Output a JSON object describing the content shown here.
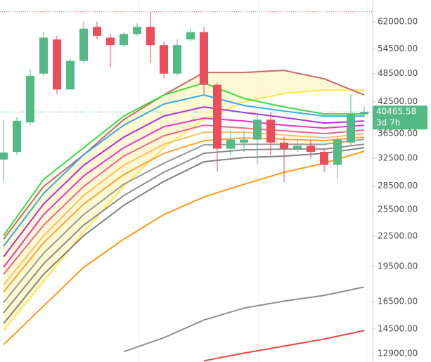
{
  "chart_data": {
    "type": "candlestick",
    "y_scale": "log",
    "ylim": [
      12400,
      68700
    ],
    "yticks": [
      {
        "value": 62000,
        "label": "62000.00"
      },
      {
        "value": 54500,
        "label": "54500.00"
      },
      {
        "value": 48500,
        "label": "48500.00"
      },
      {
        "value": 42500,
        "label": "42500.00"
      },
      {
        "value": 36500,
        "label": "36500.00"
      },
      {
        "value": 32500,
        "label": "32500.00"
      },
      {
        "value": 28500,
        "label": "28500.00"
      },
      {
        "value": 25500,
        "label": "25500.00"
      },
      {
        "value": 22500,
        "label": "22500.00"
      },
      {
        "value": 19500,
        "label": "19500.00"
      },
      {
        "value": 16500,
        "label": "16500.00"
      },
      {
        "value": 14500,
        "label": "14500.00"
      },
      {
        "value": 12900,
        "label": "12900.00"
      }
    ],
    "up_color": "#53b987",
    "down_color": "#eb4d5c",
    "categories": [
      null,
      null,
      null,
      null,
      null,
      null,
      null,
      null,
      null,
      null,
      null,
      null,
      null,
      null,
      null,
      null,
      null,
      null,
      null,
      null,
      null,
      null,
      null,
      null,
      null,
      null,
      null,
      null
    ],
    "open": [
      32300,
      33500,
      38500,
      48500,
      57000,
      45000,
      51500,
      60500,
      57500,
      55500,
      58500,
      60500,
      55500,
      48500,
      57000,
      59000,
      46000,
      34000,
      35000,
      35500,
      39000,
      35000,
      34000,
      34500,
      33500,
      31500,
      35000,
      40000
    ],
    "high": [
      39000,
      39500,
      49500,
      59000,
      58000,
      52000,
      62000,
      62000,
      58500,
      59000,
      61500,
      65000,
      56500,
      57000,
      60000,
      60500,
      46500,
      37000,
      37000,
      40000,
      40500,
      36000,
      35500,
      35500,
      34000,
      36000,
      44000,
      41500
    ],
    "low": [
      29000,
      33000,
      38000,
      48000,
      44000,
      45000,
      51000,
      57000,
      50000,
      55000,
      58000,
      51000,
      47500,
      48000,
      56500,
      44000,
      30500,
      33000,
      33500,
      31500,
      33000,
      29000,
      33500,
      32500,
      30500,
      29500,
      34500,
      39500
    ],
    "close": [
      33400,
      38800,
      48000,
      57500,
      45000,
      51500,
      60000,
      58000,
      55500,
      58500,
      60500,
      55500,
      48500,
      55500,
      59000,
      46000,
      34000,
      35500,
      35500,
      39000,
      35000,
      34000,
      34500,
      33500,
      31500,
      35500,
      40000,
      40465.58
    ],
    "current_price": 40465.58,
    "countdown": "3d 7h",
    "line_x": [
      0,
      3,
      6,
      9,
      12,
      15,
      18,
      21,
      24,
      27
    ],
    "lines": [
      {
        "color": "#f0c0b0",
        "values": [
          22170,
          28450,
          33040,
          39030,
          43840,
          48770,
          48770,
          49250,
          47330,
          43840
        ]
      },
      {
        "color": "#ffe84d",
        "values": [
          14390,
          18160,
          22920,
          28450,
          34160,
          39030,
          42410,
          44130,
          44880,
          44880
        ]
      },
      {
        "color": "#c96a6a",
        "values": [
          22170,
          28450,
          33040,
          39030,
          43840,
          48770,
          48770,
          49250,
          47330,
          43840
        ]
      },
      {
        "color": "#3ddc3d",
        "values": [
          22540,
          29410,
          34160,
          39680,
          43840,
          46390,
          43120,
          41430,
          40080,
          40080
        ]
      },
      {
        "color": "#33aaee",
        "values": [
          21440,
          27520,
          33040,
          38000,
          41990,
          43840,
          41710,
          40620,
          39680,
          39680
        ]
      },
      {
        "color": "#aa33dd",
        "values": [
          20400,
          26180,
          31440,
          35910,
          39680,
          41430,
          40350,
          39420,
          38380,
          38770
        ]
      },
      {
        "color": "#ee33cc",
        "values": [
          19410,
          24900,
          29900,
          34160,
          37740,
          39290,
          38770,
          38000,
          37490,
          38000
        ]
      },
      {
        "color": "#f2668c",
        "values": [
          18770,
          23690,
          28450,
          32830,
          36150,
          38000,
          37490,
          37000,
          36510,
          37120
        ]
      },
      {
        "color": "#ffbf66",
        "values": [
          17860,
          22540,
          27250,
          31440,
          34730,
          36760,
          36760,
          36270,
          35790,
          36510
        ]
      },
      {
        "color": "#ffa033",
        "values": [
          17270,
          21800,
          26180,
          30100,
          33270,
          35320,
          35790,
          35550,
          35320,
          35910
        ]
      },
      {
        "color": "#9a9a9a",
        "values": [
          16430,
          20740,
          24900,
          28740,
          31750,
          34620,
          34730,
          34730,
          34730,
          35550
        ]
      },
      {
        "color": "#8c8c8c",
        "values": [
          15640,
          19730,
          23690,
          27250,
          30410,
          33270,
          33830,
          33940,
          33940,
          34730
        ]
      },
      {
        "color": "#808080",
        "values": [
          14870,
          18770,
          22540,
          26010,
          29120,
          31970,
          32610,
          32830,
          33270,
          34160
        ]
      },
      {
        "color": "#ff9a1a",
        "values": [
          13460,
          16160,
          19410,
          22170,
          24900,
          27070,
          28740,
          30410,
          31750,
          33600
        ]
      },
      {
        "color": "#8f8f8f",
        "values": [
          null,
          null,
          null,
          13020,
          13910,
          15120,
          16000,
          16540,
          16990,
          17680
        ]
      },
      {
        "color": "#ee4444",
        "values": [
          null,
          null,
          null,
          null,
          null,
          12470,
          12930,
          13370,
          13820,
          14390
        ]
      }
    ]
  }
}
